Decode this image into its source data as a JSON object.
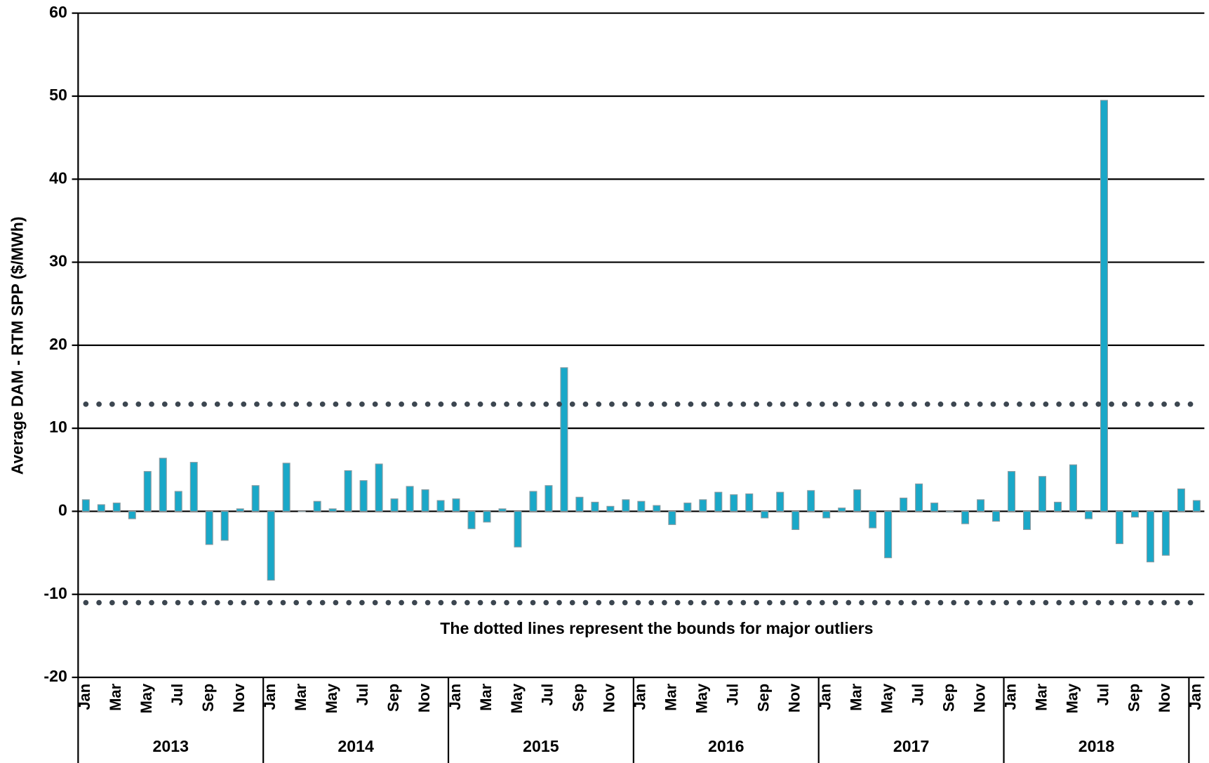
{
  "chart_data": {
    "type": "bar",
    "y_label": "Average DAM - RTM SPP ($/MWh)",
    "annotation": "The dotted lines represent the bounds for major outliers",
    "categories": [
      "Jan",
      null,
      "Mar",
      null,
      "May",
      null,
      "Jul",
      null,
      "Sep",
      null,
      "Nov",
      null,
      "Jan",
      null,
      "Mar",
      null,
      "May",
      null,
      "Jul",
      null,
      "Sep",
      null,
      "Nov",
      null,
      "Jan",
      null,
      "Mar",
      null,
      "May",
      null,
      "Jul",
      null,
      "Sep",
      null,
      "Nov",
      null,
      "Jan",
      null,
      "Mar",
      null,
      "May",
      null,
      "Jul",
      null,
      "Sep",
      null,
      "Nov",
      null,
      "Jan",
      null,
      "Mar",
      null,
      "May",
      null,
      "Jul",
      null,
      "Sep",
      null,
      "Nov",
      null,
      "Jan",
      null,
      "Mar",
      null,
      "May",
      null,
      "Jul",
      null,
      "Sep",
      null,
      "Nov",
      null,
      "Jan"
    ],
    "groups": [
      "2013",
      "2014",
      "2015",
      "2016",
      "2017",
      "2018"
    ],
    "values": [
      1.4,
      0.8,
      1.0,
      -0.9,
      4.8,
      6.4,
      2.4,
      5.9,
      -4.0,
      -3.5,
      0.3,
      3.1,
      -8.3,
      5.8,
      0,
      1.2,
      0.3,
      4.9,
      3.7,
      5.7,
      1.5,
      3.0,
      2.6,
      1.3,
      1.5,
      -2.1,
      -1.3,
      0.3,
      -4.3,
      2.4,
      3.1,
      17.3,
      1.7,
      1.1,
      0.6,
      1.4,
      1.2,
      0.7,
      -1.6,
      1.0,
      1.4,
      2.3,
      2.0,
      2.1,
      -0.8,
      2.3,
      -2.2,
      2.5,
      -0.8,
      0.4,
      2.6,
      -2.0,
      -5.6,
      1.6,
      3.3,
      1.0,
      -0.1,
      -1.5,
      1.4,
      -1.2,
      4.8,
      -2.2,
      4.2,
      1.1,
      5.6,
      -0.9,
      49.5,
      -3.9,
      -0.7,
      -6.1,
      -5.3,
      2.7,
      1.3
    ],
    "color": "#1aa8c8",
    "reference_lines": [
      12.9,
      -11.0
    ],
    "reference_color": "#3c4650",
    "ylim": [
      -20,
      60
    ],
    "yticks": [
      -20,
      -10,
      0,
      10,
      20,
      30,
      40,
      50,
      60
    ],
    "grid": true
  }
}
